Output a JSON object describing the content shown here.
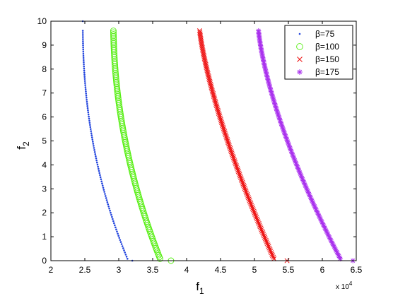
{
  "chart_data": {
    "type": "scatter",
    "title": "",
    "xlabel": "f",
    "xlabel_sub": "1",
    "ylabel": "f",
    "ylabel_sub": "2",
    "x_exponent": "x 10",
    "x_exponent_power": "4",
    "xlim": [
      2,
      6.5
    ],
    "ylim": [
      0,
      10
    ],
    "xticks": [
      2,
      2.5,
      3,
      3.5,
      4,
      4.5,
      5,
      5.5,
      6,
      6.5
    ],
    "xtick_labels": [
      "2",
      "2.5",
      "3",
      "3.5",
      "4",
      "4.5",
      "5",
      "5.5",
      "6",
      "6.5"
    ],
    "yticks": [
      0,
      1,
      2,
      3,
      4,
      5,
      6,
      7,
      8,
      9,
      10
    ],
    "ytick_labels": [
      "0",
      "1",
      "2",
      "3",
      "4",
      "5",
      "6",
      "7",
      "8",
      "9",
      "10"
    ],
    "grid": false,
    "legend_position": "top-right",
    "series": [
      {
        "name": "β=75",
        "marker": "dot",
        "color": "#2244dd",
        "x0": 2.47,
        "x1": 3.14,
        "k": 2.2,
        "n": 110,
        "extra_points": [
          [
            2.47,
            10.0
          ],
          [
            3.2,
            0.0
          ]
        ]
      },
      {
        "name": "β=100",
        "marker": "circle",
        "color": "#55ee11",
        "x0": 2.92,
        "x1": 3.62,
        "k": 2.0,
        "n": 130,
        "extra_points": [
          [
            3.77,
            0.0
          ]
        ]
      },
      {
        "name": "β=150",
        "marker": "x",
        "color": "#ee1111",
        "x0": 4.18,
        "x1": 5.3,
        "k": 1.4,
        "n": 150,
        "extra_points": [
          [
            5.48,
            0.0
          ]
        ]
      },
      {
        "name": "β=175",
        "marker": "asterisk",
        "color": "#aa33ee",
        "x0": 5.05,
        "x1": 6.28,
        "k": 1.5,
        "n": 170,
        "extra_points": [
          [
            6.45,
            0.0
          ]
        ]
      }
    ]
  }
}
